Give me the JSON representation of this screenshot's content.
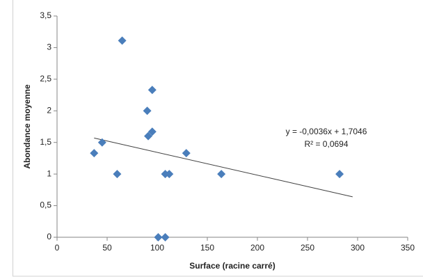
{
  "chart_data": {
    "type": "scatter",
    "x_label": "Surface (racine carré)",
    "y_label": "Abondance moyenne",
    "series": [
      {
        "name": null,
        "color": "#4a7ebb",
        "x": [
          37,
          45,
          60,
          65,
          90,
          95,
          91,
          95,
          101,
          108,
          108,
          112,
          129,
          164,
          282
        ],
        "values": [
          1.33,
          1.5,
          1.0,
          3.11,
          2.0,
          2.33,
          1.6,
          1.67,
          0,
          0,
          1.0,
          1.0,
          1.33,
          1.0,
          1.0
        ]
      }
    ],
    "trendline": {
      "color": "#404040",
      "equation": "y = -0,0036x + 1,7046",
      "r2": "R² = 0,0694",
      "x": [
        37,
        295
      ],
      "values": [
        1.57,
        0.64
      ]
    },
    "xlim": [
      0,
      350
    ],
    "xticks": [
      0,
      50,
      100,
      150,
      200,
      250,
      300,
      350
    ],
    "ylim": [
      0,
      3.5
    ],
    "yticks": [
      0,
      {
        "value": 0.5,
        "label": "0,5"
      },
      1,
      {
        "value": 1.5,
        "label": "1,5"
      },
      2,
      {
        "value": 2.5,
        "label": "2,5"
      },
      3,
      {
        "value": 3.5,
        "label": "3,5"
      }
    ],
    "grid": false
  }
}
